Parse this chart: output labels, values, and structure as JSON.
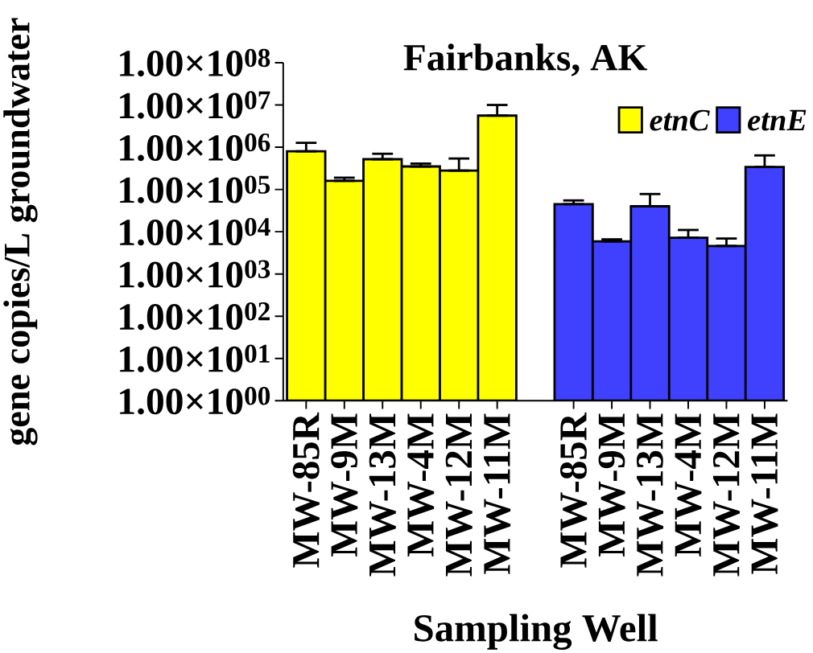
{
  "chart_data": {
    "type": "bar",
    "title": "Fairbanks, AK",
    "xlabel": "Sampling Well",
    "ylabel": "gene copies/L groundwater",
    "categories": [
      "MW-85R",
      "MW-9M",
      "MW-13M",
      "MW-4M",
      "MW-12M",
      "MW-11M",
      null,
      "MW-85R",
      "MW-9M",
      "MW-13M",
      "MW-4M",
      "MW-12M",
      "MW-11M"
    ],
    "series": [
      {
        "name": "etnC",
        "color": "#ffff00",
        "values": [
          800000,
          160000,
          520000,
          350000,
          280000,
          5600000,
          null,
          null,
          null,
          null,
          null,
          null,
          null
        ],
        "errors": [
          [
            800000,
            1270000
          ],
          [
            160000,
            190000
          ],
          [
            520000,
            700000
          ],
          [
            350000,
            410000
          ],
          [
            280000,
            540000
          ],
          [
            5600000,
            10000000
          ],
          null,
          null,
          null,
          null,
          null,
          null,
          null
        ]
      },
      {
        "name": "etnE",
        "color": "#4040ff",
        "values": [
          null,
          null,
          null,
          null,
          null,
          null,
          null,
          45000,
          5900,
          40000,
          7200,
          4600,
          340000
        ],
        "errors": [
          null,
          null,
          null,
          null,
          null,
          null,
          null,
          [
            45000,
            55000
          ],
          [
            5900,
            6600
          ],
          [
            40000,
            78000
          ],
          [
            7200,
            11000
          ],
          [
            4600,
            6900
          ],
          [
            340000,
            640000
          ]
        ]
      }
    ],
    "log": "y",
    "ylim": [
      1,
      100000000
    ],
    "yticks": [
      {
        "value": 1,
        "label": "1.00×10$^{00}$"
      },
      {
        "value": 10,
        "label": "1.00×10$^{01}$"
      },
      {
        "value": 100,
        "label": "1.00×10$^{02}$"
      },
      {
        "value": 1000,
        "label": "1.00×10$^{03}$"
      },
      {
        "value": 10000,
        "label": "1.00×10$^{04}$"
      },
      {
        "value": 100000,
        "label": "1.00×10$^{05}$"
      },
      {
        "value": 1000000,
        "label": "1.00×10$^{06}$"
      },
      {
        "value": 10000000,
        "label": "1.00×10$^{07}$"
      },
      {
        "value": 100000000,
        "label": "1.00×10$^{08}$"
      }
    ],
    "legend": "top right",
    "grid": false
  }
}
